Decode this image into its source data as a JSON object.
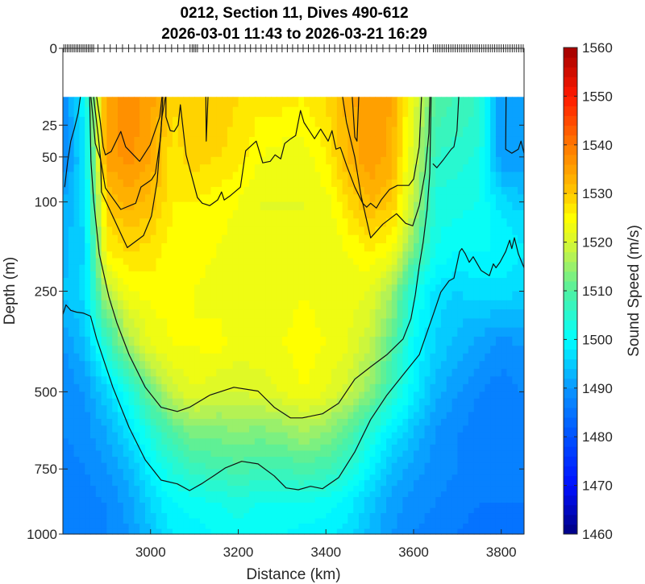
{
  "chart_data": {
    "type": "heatmap",
    "title": [
      "0212, Section 11, Dives 490-612",
      "2026-03-01 11:43 to 2026-03-21 16:29"
    ],
    "xlabel": "Distance (km)",
    "ylabel": "Depth (m)",
    "xlim": [
      2800,
      3852
    ],
    "ylim": [
      0,
      1000
    ],
    "y_scale": "sqrt",
    "xticks": [
      3000,
      3200,
      3400,
      3600,
      3800
    ],
    "xtick_labels": [
      "3000",
      "3200",
      "3400",
      "3600",
      "3800"
    ],
    "yticks": [
      0,
      25,
      50,
      100,
      250,
      500,
      750,
      1000
    ],
    "ytick_labels": [
      "0",
      "25",
      "50",
      "100",
      "250",
      "500",
      "750",
      "1000"
    ],
    "colorbar": {
      "label": "Sound Speed (m/s)",
      "range": [
        1460,
        1560
      ],
      "step": 2,
      "ticks": [
        1460,
        1470,
        1480,
        1490,
        1500,
        1510,
        1520,
        1530,
        1540,
        1550,
        1560
      ],
      "tick_labels": [
        "1460",
        "1470",
        "1480",
        "1490",
        "1500",
        "1510",
        "1520",
        "1530",
        "1540",
        "1550",
        "1560"
      ],
      "colors": [
        [
          1460,
          "#000080"
        ],
        [
          1470,
          "#0010ff"
        ],
        [
          1480,
          "#0050ff"
        ],
        [
          1490,
          "#0a96ff"
        ],
        [
          1500,
          "#00ffff"
        ],
        [
          1510,
          "#50f0a0"
        ],
        [
          1516,
          "#a8f060"
        ],
        [
          1520,
          "#d8f830"
        ],
        [
          1525,
          "#ffff00"
        ],
        [
          1530,
          "#ffc800"
        ],
        [
          1540,
          "#ff7800"
        ],
        [
          1550,
          "#ff1a00"
        ],
        [
          1560,
          "#a00000"
        ]
      ]
    },
    "dive_tick_segments_km": [
      [
        2802,
        2870,
        4
      ],
      [
        2880,
        3090,
        14
      ],
      [
        3095,
        3110,
        4
      ],
      [
        3120,
        3520,
        12
      ],
      [
        3530,
        3590,
        15
      ],
      [
        3605,
        3640,
        9
      ],
      [
        3645,
        3850,
        5
      ]
    ],
    "grid": {
      "distance_km": [
        2800,
        2850,
        2900,
        2950,
        3000,
        3050,
        3100,
        3150,
        3200,
        3250,
        3300,
        3350,
        3400,
        3450,
        3500,
        3550,
        3600,
        3650,
        3700,
        3750,
        3800,
        3850
      ],
      "depth_m": [
        10,
        50,
        100,
        175,
        250,
        375,
        500,
        625,
        750,
        875,
        1000
      ],
      "sound_speed": [
        [
          1488,
          1500,
          1535,
          1537,
          1535,
          1528,
          1530,
          1530,
          1528,
          1527,
          1527,
          1526,
          1528,
          1533,
          1536,
          1534,
          1522,
          1510,
          1508,
          1506,
          1490,
          1492
        ],
        [
          1487,
          1498,
          1535,
          1537,
          1534,
          1527,
          1529,
          1528,
          1527,
          1524,
          1523,
          1523,
          1526,
          1532,
          1536,
          1533,
          1520,
          1506,
          1505,
          1503,
          1490,
          1490
        ],
        [
          1492,
          1497,
          1530,
          1533,
          1531,
          1526,
          1526,
          1525,
          1524,
          1522,
          1522,
          1522,
          1523,
          1528,
          1532,
          1530,
          1518,
          1503,
          1503,
          1502,
          1497,
          1495
        ],
        [
          1493,
          1496,
          1526,
          1528,
          1527,
          1525,
          1525,
          1524,
          1523,
          1522,
          1522,
          1522,
          1522,
          1524,
          1526,
          1524,
          1512,
          1502,
          1500,
          1500,
          1500,
          1498
        ],
        [
          1494,
          1497,
          1518,
          1524,
          1525,
          1525,
          1524,
          1523,
          1523,
          1524,
          1523,
          1524,
          1523,
          1523,
          1522,
          1516,
          1503,
          1497,
          1496,
          1497,
          1497,
          1496
        ],
        [
          1490,
          1494,
          1505,
          1516,
          1522,
          1524,
          1524,
          1525,
          1523,
          1523,
          1524,
          1525,
          1524,
          1522,
          1518,
          1510,
          1500,
          1496,
          1493,
          1491,
          1489,
          1490
        ],
        [
          1488,
          1490,
          1496,
          1503,
          1512,
          1519,
          1522,
          1520,
          1520,
          1521,
          1522,
          1524,
          1522,
          1519,
          1514,
          1506,
          1499,
          1493,
          1490,
          1488,
          1487,
          1488
        ],
        [
          1488,
          1489,
          1492,
          1497,
          1504,
          1510,
          1513,
          1513,
          1514,
          1513,
          1514,
          1516,
          1514,
          1510,
          1504,
          1498,
          1494,
          1490,
          1488,
          1487,
          1487,
          1487
        ],
        [
          1487,
          1488,
          1490,
          1493,
          1499,
          1504,
          1507,
          1508,
          1509,
          1508,
          1508,
          1509,
          1508,
          1505,
          1499,
          1494,
          1491,
          1489,
          1488,
          1487,
          1487,
          1487
        ],
        [
          1487,
          1487,
          1488,
          1491,
          1496,
          1500,
          1501,
          1502,
          1503,
          1502,
          1502,
          1502,
          1501,
          1499,
          1495,
          1491,
          1489,
          1488,
          1487,
          1486,
          1486,
          1486
        ],
        [
          1486,
          1487,
          1488,
          1490,
          1494,
          1498,
          1499,
          1500,
          1501,
          1500,
          1500,
          1499,
          1499,
          1497,
          1493,
          1490,
          1488,
          1487,
          1486,
          1485,
          1485,
          1486
        ]
      ]
    },
    "contours": [
      {
        "level": 1490,
        "points": [
          [
            2840,
            10
          ],
          [
            2835,
            17.7
          ],
          [
            2826,
            27.6
          ],
          [
            2818,
            36.5
          ],
          [
            2811,
            54
          ],
          [
            2804,
            81.6
          ]
        ]
      },
      {
        "level": 1490,
        "points": [
          [
            3811,
            10
          ],
          [
            3810,
            43.1
          ],
          [
            3824,
            46.6
          ],
          [
            3839,
            43.1
          ],
          [
            3845,
            36.5
          ],
          [
            3852,
            46.6
          ]
        ]
      },
      {
        "level": 1500,
        "points": [
          [
            2800,
            300
          ],
          [
            2807,
            279
          ],
          [
            2818,
            291
          ],
          [
            2831,
            295
          ],
          [
            2846,
            297
          ],
          [
            2863,
            304
          ],
          [
            2877,
            358
          ],
          [
            2914,
            487
          ],
          [
            2951,
            609
          ],
          [
            2988,
            718
          ],
          [
            3024,
            790
          ],
          [
            3061,
            804
          ],
          [
            3089,
            829
          ],
          [
            3116,
            804
          ],
          [
            3144,
            775
          ],
          [
            3171,
            746
          ],
          [
            3208,
            723
          ],
          [
            3245,
            732
          ],
          [
            3282,
            775
          ],
          [
            3309,
            819
          ],
          [
            3337,
            826
          ],
          [
            3365,
            813
          ],
          [
            3392,
            822
          ],
          [
            3429,
            781
          ],
          [
            3466,
            690
          ],
          [
            3502,
            584
          ],
          [
            3539,
            510
          ],
          [
            3576,
            452
          ],
          [
            3613,
            398
          ],
          [
            3646,
            297
          ],
          [
            3662,
            252
          ],
          [
            3681,
            229
          ],
          [
            3692,
            224
          ],
          [
            3705,
            175
          ],
          [
            3710,
            170
          ],
          [
            3718,
            179
          ],
          [
            3727,
            194
          ],
          [
            3736,
            184
          ],
          [
            3754,
            209
          ],
          [
            3773,
            219
          ],
          [
            3782,
            197
          ],
          [
            3788,
            204
          ],
          [
            3797,
            194
          ],
          [
            3810,
            175
          ],
          [
            3819,
            156
          ],
          [
            3824,
            170
          ],
          [
            3830,
            152
          ],
          [
            3839,
            179
          ],
          [
            3852,
            204
          ]
        ]
      },
      {
        "level": 1505,
        "points": [
          [
            3703,
            10
          ],
          [
            3699,
            28.7
          ],
          [
            3692,
            41.1
          ],
          [
            3686,
            43.1
          ],
          [
            3668,
            52.5
          ],
          [
            3653,
            60.4
          ],
          [
            3644,
            56.4
          ]
        ]
      },
      {
        "level": 1510,
        "points": [
          [
            2861,
            10
          ],
          [
            2864,
            54
          ],
          [
            2870,
            97.5
          ],
          [
            2883,
            179
          ],
          [
            2905,
            262
          ],
          [
            2923,
            319
          ],
          [
            2951,
            398
          ],
          [
            2988,
            487
          ],
          [
            3024,
            546
          ],
          [
            3061,
            559
          ],
          [
            3089,
            546
          ],
          [
            3135,
            510
          ],
          [
            3190,
            487
          ],
          [
            3245,
            498
          ],
          [
            3282,
            546
          ],
          [
            3319,
            579
          ],
          [
            3346,
            579
          ],
          [
            3392,
            566
          ],
          [
            3429,
            534
          ],
          [
            3466,
            464
          ],
          [
            3502,
            430
          ],
          [
            3539,
            398
          ],
          [
            3576,
            358
          ],
          [
            3594,
            310
          ],
          [
            3604,
            257
          ],
          [
            3613,
            201
          ],
          [
            3622,
            159
          ],
          [
            3631,
            110
          ],
          [
            3637,
            66
          ],
          [
            3640,
            10
          ]
        ]
      },
      {
        "level": 1525,
        "points": [
          [
            2864,
            10
          ],
          [
            2874,
            38.4
          ],
          [
            2886,
            52.5
          ],
          [
            2888,
            87.4
          ],
          [
            2905,
            108
          ],
          [
            2947,
            168.3
          ],
          [
            2984,
            148.5
          ],
          [
            3002,
            119.4
          ],
          [
            3015,
            75.1
          ],
          [
            3026,
            19.9
          ],
          [
            3034,
            10
          ]
        ]
      },
      {
        "level": 1530,
        "points": [
          [
            2870,
            10
          ],
          [
            2881,
            33.4
          ],
          [
            2886,
            52.5
          ],
          [
            2897,
            82.6
          ],
          [
            2932,
            110
          ],
          [
            2966,
            101.7
          ],
          [
            2978,
            81.6
          ],
          [
            3002,
            73.3
          ],
          [
            3011,
            66.3
          ],
          [
            3023,
            33.4
          ],
          [
            3028,
            10
          ]
        ]
      },
      {
        "level": 1535,
        "points": [
          [
            2877,
            10
          ],
          [
            2885,
            22.3
          ],
          [
            2892,
            41.1
          ],
          [
            2897,
            48.1
          ],
          [
            2910,
            45.2
          ],
          [
            2932,
            29.3
          ],
          [
            2943,
            41.1
          ],
          [
            2975,
            54.1
          ],
          [
            2999,
            39.7
          ],
          [
            3021,
            19.9
          ],
          [
            3026,
            10
          ]
        ]
      },
      {
        "level": 1530,
        "points": [
          [
            3035,
            10
          ],
          [
            3035,
            19.9
          ],
          [
            3045,
            28.7
          ],
          [
            3054,
            29.3
          ],
          [
            3063,
            24.9
          ],
          [
            3068,
            13.5
          ],
          [
            3081,
            48.1
          ],
          [
            3107,
            94.4
          ],
          [
            3118,
            101.7
          ],
          [
            3135,
            104.9
          ],
          [
            3153,
            97.5
          ],
          [
            3162,
            87.4
          ],
          [
            3168,
            97.5
          ],
          [
            3181,
            92.4
          ],
          [
            3205,
            81.6
          ],
          [
            3217,
            44.5
          ],
          [
            3241,
            36.5
          ],
          [
            3256,
            55.6
          ],
          [
            3273,
            54.1
          ],
          [
            3284,
            48.1
          ],
          [
            3297,
            51.8
          ],
          [
            3306,
            38.4
          ],
          [
            3320,
            34.6
          ],
          [
            3331,
            32.2
          ],
          [
            3342,
            16.4
          ],
          [
            3350,
            23.3
          ],
          [
            3374,
            34.6
          ],
          [
            3388,
            27.6
          ],
          [
            3405,
            36.5
          ],
          [
            3414,
            28.7
          ],
          [
            3423,
            43.1
          ],
          [
            3433,
            41.7
          ],
          [
            3447,
            58
          ],
          [
            3466,
            81.6
          ],
          [
            3484,
            101.7
          ],
          [
            3493,
            107
          ],
          [
            3502,
            101.7
          ],
          [
            3515,
            108.1
          ],
          [
            3526,
            97.5
          ],
          [
            3545,
            84.5
          ],
          [
            3563,
            79.7
          ],
          [
            3589,
            79.7
          ],
          [
            3600,
            72.4
          ],
          [
            3613,
            41.1
          ],
          [
            3618,
            10
          ]
        ]
      },
      {
        "level": 1525,
        "points": [
          [
            3438,
            10
          ],
          [
            3447,
            23.3
          ],
          [
            3466,
            50.3
          ],
          [
            3480,
            91.4
          ],
          [
            3502,
            152.3
          ],
          [
            3530,
            131.1
          ],
          [
            3561,
            115.9
          ],
          [
            3582,
            129.9
          ],
          [
            3598,
            133.5
          ],
          [
            3613,
            104.9
          ],
          [
            3626,
            66.3
          ],
          [
            3635,
            30.4
          ],
          [
            3637,
            10
          ]
        ]
      },
      {
        "level": 1530,
        "points": [
          [
            3126,
            10
          ],
          [
            3127,
            36.5
          ],
          [
            3131,
            10
          ]
        ]
      },
      {
        "level": 1530,
        "points": [
          [
            3460,
            10
          ],
          [
            3466,
            33.4
          ],
          [
            3471,
            36.5
          ],
          [
            3475,
            10
          ]
        ]
      }
    ]
  }
}
